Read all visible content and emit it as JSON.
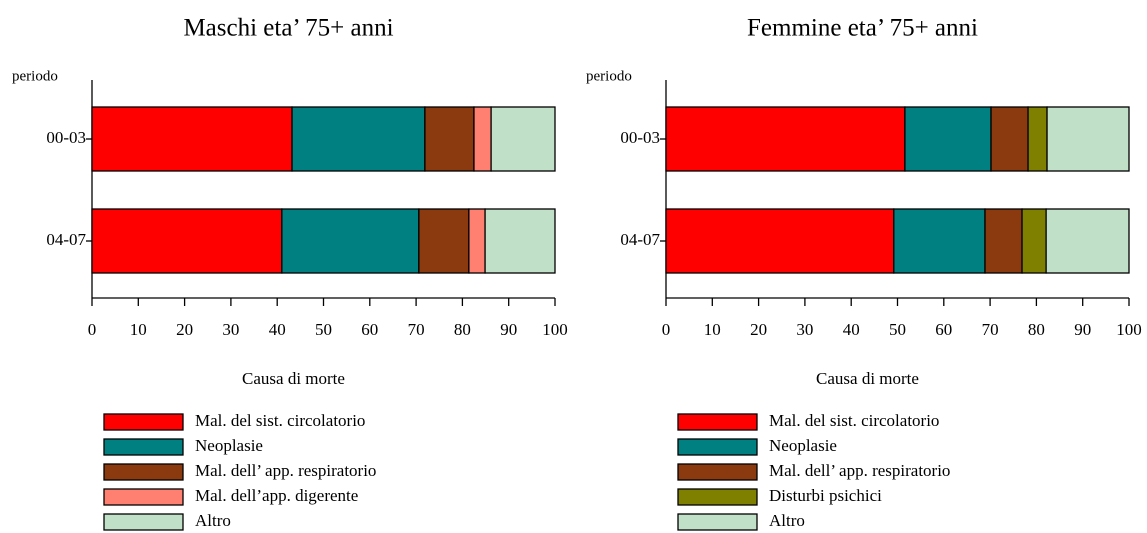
{
  "chart_data": [
    {
      "type": "stacked-bar-horizontal",
      "title": "Maschi eta’ 75+ anni",
      "ylabel": "periodo",
      "xlabel": "Causa di morte",
      "categories": [
        "00-03",
        "04-07"
      ],
      "series": [
        {
          "name": "Mal. del sist. circolatorio",
          "color": "#ff0000",
          "values": [
            43.2,
            41.0
          ]
        },
        {
          "name": "Neoplasie",
          "color": "#008080",
          "values": [
            28.7,
            29.6
          ]
        },
        {
          "name": "Mal. dell’ app. respiratorio",
          "color": "#8b3a0f",
          "values": [
            10.6,
            10.8
          ]
        },
        {
          "name": "Mal. dell’app. digerente",
          "color": "#ff8070",
          "values": [
            3.7,
            3.5
          ]
        },
        {
          "name": "Altro",
          "color": "#c0e0c8",
          "values": [
            13.8,
            15.1
          ]
        }
      ],
      "xlim": [
        0,
        100
      ],
      "xticks": [
        0,
        10,
        20,
        30,
        40,
        50,
        60,
        70,
        80,
        90,
        100
      ]
    },
    {
      "type": "stacked-bar-horizontal",
      "title": "Femmine eta’ 75+ anni",
      "ylabel": "periodo",
      "xlabel": "Causa di morte",
      "categories": [
        "00-03",
        "04-07"
      ],
      "series": [
        {
          "name": "Mal. del sist. circolatorio",
          "color": "#ff0000",
          "values": [
            51.6,
            49.2
          ]
        },
        {
          "name": "Neoplasie",
          "color": "#008080",
          "values": [
            18.6,
            19.7
          ]
        },
        {
          "name": "Mal. dell’ app. respiratorio",
          "color": "#8b3a0f",
          "values": [
            8.0,
            8.0
          ]
        },
        {
          "name": "Disturbi psichici",
          "color": "#808000",
          "values": [
            4.1,
            5.2
          ]
        },
        {
          "name": "Altro",
          "color": "#c0e0c8",
          "values": [
            17.7,
            17.9
          ]
        }
      ],
      "xlim": [
        0,
        100
      ],
      "xticks": [
        0,
        10,
        20,
        30,
        40,
        50,
        60,
        70,
        80,
        90,
        100
      ]
    }
  ]
}
